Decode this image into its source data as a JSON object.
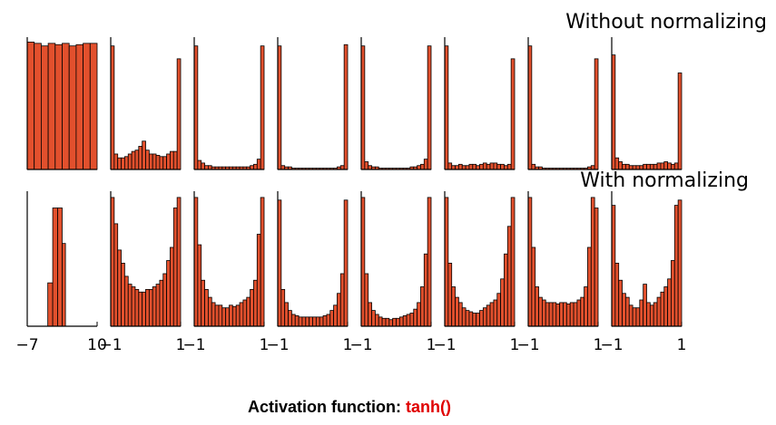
{
  "chart_data": [
    {
      "type": "histogram",
      "color": "#e2502d",
      "xlim": [
        0,
        10
      ],
      "ylim": [
        0,
        100
      ],
      "bins": [
        0,
        1,
        2,
        3,
        4,
        5,
        6,
        7,
        8,
        9,
        10
      ],
      "values": [
        99,
        98,
        96,
        98,
        97,
        98,
        96,
        97,
        98,
        98
      ]
    },
    {
      "type": "histogram",
      "color": "#e2502d",
      "xlim": [
        -1,
        1
      ],
      "ylim": [
        0,
        100
      ],
      "bins": [
        -1,
        -0.9,
        -0.8,
        -0.7,
        -0.6,
        -0.5,
        -0.4,
        -0.3,
        -0.2,
        -0.1,
        0,
        0.1,
        0.2,
        0.3,
        0.4,
        0.5,
        0.6,
        0.7,
        0.8,
        0.9,
        1
      ],
      "values": [
        96,
        12,
        9,
        9,
        10,
        12,
        14,
        15,
        18,
        22,
        15,
        12,
        12,
        11,
        10,
        10,
        12,
        14,
        14,
        86
      ]
    },
    {
      "type": "histogram",
      "color": "#e2502d",
      "xlim": [
        -1,
        1
      ],
      "ylim": [
        0,
        100
      ],
      "bins": [
        -1,
        -0.9,
        -0.8,
        -0.7,
        -0.6,
        -0.5,
        -0.4,
        -0.3,
        -0.2,
        -0.1,
        0,
        0.1,
        0.2,
        0.3,
        0.4,
        0.5,
        0.6,
        0.7,
        0.8,
        0.9,
        1
      ],
      "values": [
        96,
        7,
        5,
        3,
        3,
        2,
        2,
        2,
        2,
        2,
        2,
        2,
        2,
        2,
        2,
        2,
        3,
        4,
        8,
        96
      ]
    },
    {
      "type": "histogram",
      "color": "#e2502d",
      "xlim": [
        -1,
        1
      ],
      "ylim": [
        0,
        100
      ],
      "bins": [
        -1,
        -0.9,
        -0.8,
        -0.7,
        -0.6,
        -0.5,
        -0.4,
        -0.3,
        -0.2,
        -0.1,
        0,
        0.1,
        0.2,
        0.3,
        0.4,
        0.5,
        0.6,
        0.7,
        0.8,
        0.9,
        1
      ],
      "values": [
        96,
        3,
        2,
        2,
        1,
        1,
        1,
        1,
        1,
        1,
        1,
        1,
        1,
        1,
        1,
        1,
        1,
        2,
        3,
        97
      ]
    },
    {
      "type": "histogram",
      "color": "#e2502d",
      "xlim": [
        -1,
        1
      ],
      "ylim": [
        0,
        100
      ],
      "bins": [
        -1,
        -0.9,
        -0.8,
        -0.7,
        -0.6,
        -0.5,
        -0.4,
        -0.3,
        -0.2,
        -0.1,
        0,
        0.1,
        0.2,
        0.3,
        0.4,
        0.5,
        0.6,
        0.7,
        0.8,
        0.9,
        1
      ],
      "values": [
        96,
        6,
        3,
        2,
        2,
        1,
        1,
        1,
        1,
        1,
        1,
        1,
        1,
        1,
        2,
        2,
        3,
        4,
        8,
        96
      ]
    },
    {
      "type": "histogram",
      "color": "#e2502d",
      "xlim": [
        -1,
        1
      ],
      "ylim": [
        0,
        100
      ],
      "bins": [
        -1,
        -0.9,
        -0.8,
        -0.7,
        -0.6,
        -0.5,
        -0.4,
        -0.3,
        -0.2,
        -0.1,
        0,
        0.1,
        0.2,
        0.3,
        0.4,
        0.5,
        0.6,
        0.7,
        0.8,
        0.9,
        1
      ],
      "values": [
        96,
        5,
        3,
        3,
        4,
        3,
        3,
        4,
        4,
        3,
        4,
        5,
        4,
        5,
        5,
        4,
        4,
        3,
        4,
        86
      ]
    },
    {
      "type": "histogram",
      "color": "#e2502d",
      "xlim": [
        -1,
        1
      ],
      "ylim": [
        0,
        100
      ],
      "bins": [
        -1,
        -0.9,
        -0.8,
        -0.7,
        -0.6,
        -0.5,
        -0.4,
        -0.3,
        -0.2,
        -0.1,
        0,
        0.1,
        0.2,
        0.3,
        0.4,
        0.5,
        0.6,
        0.7,
        0.8,
        0.9,
        1
      ],
      "values": [
        96,
        4,
        2,
        2,
        1,
        1,
        1,
        1,
        1,
        1,
        1,
        1,
        1,
        1,
        1,
        1,
        1,
        2,
        3,
        86
      ]
    },
    {
      "type": "histogram",
      "color": "#e2502d",
      "title": "Without normalizing",
      "xlim": [
        -1,
        1
      ],
      "ylim": [
        0,
        100
      ],
      "bins": [
        -1,
        -0.9,
        -0.8,
        -0.7,
        -0.6,
        -0.5,
        -0.4,
        -0.3,
        -0.2,
        -0.1,
        0,
        0.1,
        0.2,
        0.3,
        0.4,
        0.5,
        0.6,
        0.7,
        0.8,
        0.9,
        1
      ],
      "values": [
        89,
        9,
        6,
        4,
        4,
        3,
        3,
        3,
        3,
        4,
        4,
        4,
        4,
        5,
        5,
        6,
        5,
        4,
        5,
        75
      ]
    },
    {
      "type": "histogram",
      "color": "#e2502d",
      "xlim": [
        -7,
        10
      ],
      "ylim": [
        0,
        100
      ],
      "xticks": [
        {
          "value": -7,
          "label": "−7"
        },
        10
      ],
      "bins": [
        -2,
        -0.8,
        0.4,
        1.5,
        2.3
      ],
      "values": [
        33,
        90,
        90,
        63
      ]
    },
    {
      "type": "histogram",
      "color": "#e2502d",
      "xlim": [
        -1,
        1
      ],
      "ylim": [
        0,
        100
      ],
      "xticks": [
        {
          "value": -1,
          "label": "−1"
        },
        1
      ],
      "bins": [
        -1,
        -0.9,
        -0.8,
        -0.7,
        -0.6,
        -0.5,
        -0.4,
        -0.3,
        -0.2,
        -0.1,
        0,
        0.1,
        0.2,
        0.3,
        0.4,
        0.5,
        0.6,
        0.7,
        0.8,
        0.9,
        1
      ],
      "values": [
        98,
        78,
        58,
        48,
        38,
        32,
        30,
        28,
        26,
        26,
        28,
        28,
        30,
        32,
        35,
        40,
        50,
        60,
        90,
        98
      ]
    },
    {
      "type": "histogram",
      "color": "#e2502d",
      "xlim": [
        -1,
        1
      ],
      "ylim": [
        0,
        100
      ],
      "xticks": [
        {
          "value": -1,
          "label": "−1"
        },
        1
      ],
      "bins": [
        -1,
        -0.9,
        -0.8,
        -0.7,
        -0.6,
        -0.5,
        -0.4,
        -0.3,
        -0.2,
        -0.1,
        0,
        0.1,
        0.2,
        0.3,
        0.4,
        0.5,
        0.6,
        0.7,
        0.8,
        0.9,
        1
      ],
      "values": [
        98,
        62,
        35,
        28,
        22,
        18,
        16,
        16,
        14,
        14,
        16,
        15,
        16,
        18,
        20,
        22,
        28,
        35,
        70,
        98
      ]
    },
    {
      "type": "histogram",
      "color": "#e2502d",
      "xlim": [
        -1,
        1
      ],
      "ylim": [
        0,
        100
      ],
      "xticks": [
        {
          "value": -1,
          "label": "−1"
        },
        1
      ],
      "bins": [
        -1,
        -0.9,
        -0.8,
        -0.7,
        -0.6,
        -0.5,
        -0.4,
        -0.3,
        -0.2,
        -0.1,
        0,
        0.1,
        0.2,
        0.3,
        0.4,
        0.5,
        0.6,
        0.7,
        0.8,
        0.9,
        1
      ],
      "values": [
        96,
        28,
        18,
        12,
        9,
        8,
        7,
        7,
        7,
        7,
        7,
        7,
        7,
        8,
        9,
        12,
        16,
        25,
        40,
        96
      ]
    },
    {
      "type": "histogram",
      "color": "#e2502d",
      "xlim": [
        -1,
        1
      ],
      "ylim": [
        0,
        100
      ],
      "xticks": [
        {
          "value": -1,
          "label": "−1"
        },
        1
      ],
      "bins": [
        -1,
        -0.9,
        -0.8,
        -0.7,
        -0.6,
        -0.5,
        -0.4,
        -0.3,
        -0.2,
        -0.1,
        0,
        0.1,
        0.2,
        0.3,
        0.4,
        0.5,
        0.6,
        0.7,
        0.8,
        0.9,
        1
      ],
      "values": [
        98,
        40,
        18,
        12,
        9,
        7,
        6,
        6,
        5,
        6,
        6,
        7,
        8,
        9,
        10,
        13,
        18,
        30,
        55,
        98
      ]
    },
    {
      "type": "histogram",
      "color": "#e2502d",
      "xlim": [
        -1,
        1
      ],
      "ylim": [
        0,
        100
      ],
      "xticks": [
        {
          "value": -1,
          "label": "−1"
        },
        1
      ],
      "bins": [
        -1,
        -0.9,
        -0.8,
        -0.7,
        -0.6,
        -0.5,
        -0.4,
        -0.3,
        -0.2,
        -0.1,
        0,
        0.1,
        0.2,
        0.3,
        0.4,
        0.5,
        0.6,
        0.7,
        0.8,
        0.9,
        1
      ],
      "values": [
        98,
        48,
        30,
        22,
        18,
        14,
        12,
        11,
        10,
        10,
        12,
        14,
        16,
        18,
        20,
        25,
        36,
        55,
        76,
        98
      ]
    },
    {
      "type": "histogram",
      "color": "#e2502d",
      "xlim": [
        -1,
        1
      ],
      "ylim": [
        0,
        100
      ],
      "xticks": [
        {
          "value": -1,
          "label": "−1"
        },
        1
      ],
      "bins": [
        -1,
        -0.9,
        -0.8,
        -0.7,
        -0.6,
        -0.5,
        -0.4,
        -0.3,
        -0.2,
        -0.1,
        0,
        0.1,
        0.2,
        0.3,
        0.4,
        0.5,
        0.6,
        0.7,
        0.8,
        0.9,
        1
      ],
      "values": [
        98,
        60,
        30,
        22,
        20,
        18,
        18,
        18,
        17,
        18,
        18,
        17,
        18,
        18,
        20,
        22,
        30,
        60,
        98,
        90
      ]
    },
    {
      "type": "histogram",
      "color": "#e2502d",
      "title": "With normalizing",
      "xlim": [
        -1,
        1
      ],
      "ylim": [
        0,
        100
      ],
      "xticks": [
        {
          "value": -1,
          "label": "−1"
        },
        1
      ],
      "bins": [
        -1,
        -0.9,
        -0.8,
        -0.7,
        -0.6,
        -0.5,
        -0.4,
        -0.3,
        -0.2,
        -0.1,
        0,
        0.1,
        0.2,
        0.3,
        0.4,
        0.5,
        0.6,
        0.7,
        0.8,
        0.9,
        1
      ],
      "values": [
        92,
        48,
        35,
        25,
        22,
        16,
        14,
        14,
        20,
        32,
        18,
        16,
        18,
        22,
        26,
        30,
        36,
        50,
        92,
        96
      ]
    }
  ],
  "caption": {
    "label": "Activation function:",
    "name": "tanh()"
  }
}
